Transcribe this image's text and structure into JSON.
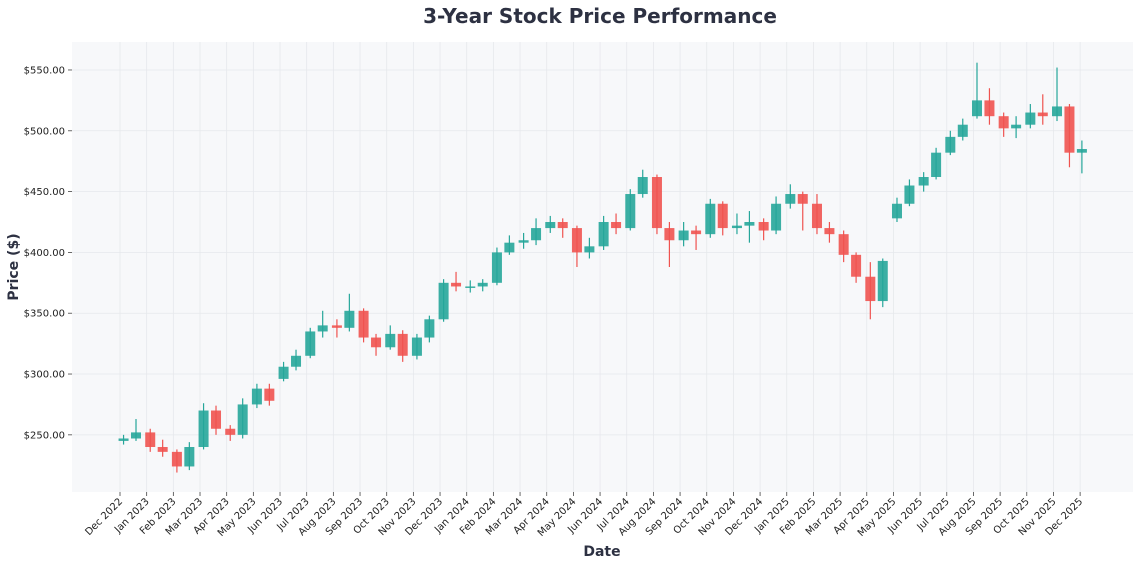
{
  "chart_data": {
    "type": "candlestick",
    "title": "3-Year Stock Price Performance",
    "xlabel": "Date",
    "ylabel": "Price ($)",
    "ylim": [
      203,
      573
    ],
    "y_ticks": [
      "$250.00",
      "$300.00",
      "$350.00",
      "$400.00",
      "$450.00",
      "$500.00",
      "$550.00"
    ],
    "y_tick_values": [
      250,
      300,
      350,
      400,
      450,
      500,
      550
    ],
    "x_ticks": [
      "Dec 2022",
      "Jan 2023",
      "Feb 2023",
      "Mar 2023",
      "Apr 2023",
      "May 2023",
      "Jun 2023",
      "Jul 2023",
      "Aug 2023",
      "Sep 2023",
      "Oct 2023",
      "Nov 2023",
      "Dec 2023",
      "Jan 2024",
      "Feb 2024",
      "Mar 2024",
      "Apr 2024",
      "May 2024",
      "Jun 2024",
      "Jul 2024",
      "Aug 2024",
      "Sep 2024",
      "Oct 2024",
      "Nov 2024",
      "Dec 2024",
      "Jan 2025",
      "Feb 2025",
      "Mar 2025",
      "Apr 2025",
      "May 2025",
      "Jun 2025",
      "Jul 2025",
      "Aug 2025",
      "Sep 2025",
      "Oct 2025",
      "Nov 2025",
      "Dec 2025"
    ],
    "grid": true,
    "colors": {
      "up": "#26a69a",
      "down": "#ef5350",
      "plot_bg": "#f7f8fa",
      "grid": "#e6e8ec"
    },
    "candles": [
      {
        "date": "2022-12-05",
        "open": 245,
        "high": 250,
        "low": 242,
        "close": 247
      },
      {
        "date": "2022-12-19",
        "open": 247,
        "high": 263,
        "low": 245,
        "close": 252
      },
      {
        "date": "2023-01-05",
        "open": 252,
        "high": 255,
        "low": 236,
        "close": 240
      },
      {
        "date": "2023-01-19",
        "open": 240,
        "high": 246,
        "low": 232,
        "close": 236
      },
      {
        "date": "2023-02-05",
        "open": 236,
        "high": 238,
        "low": 219,
        "close": 224
      },
      {
        "date": "2023-02-19",
        "open": 224,
        "high": 244,
        "low": 221,
        "close": 240
      },
      {
        "date": "2023-03-05",
        "open": 240,
        "high": 276,
        "low": 238,
        "close": 270
      },
      {
        "date": "2023-03-19",
        "open": 270,
        "high": 274,
        "low": 250,
        "close": 255
      },
      {
        "date": "2023-04-05",
        "open": 255,
        "high": 258,
        "low": 245,
        "close": 250
      },
      {
        "date": "2023-04-19",
        "open": 250,
        "high": 280,
        "low": 247,
        "close": 275
      },
      {
        "date": "2023-05-05",
        "open": 275,
        "high": 292,
        "low": 272,
        "close": 288
      },
      {
        "date": "2023-05-19",
        "open": 288,
        "high": 292,
        "low": 274,
        "close": 278
      },
      {
        "date": "2023-06-05",
        "open": 296,
        "high": 310,
        "low": 294,
        "close": 306
      },
      {
        "date": "2023-06-19",
        "open": 306,
        "high": 320,
        "low": 303,
        "close": 315
      },
      {
        "date": "2023-07-05",
        "open": 315,
        "high": 338,
        "low": 313,
        "close": 335
      },
      {
        "date": "2023-07-19",
        "open": 335,
        "high": 352,
        "low": 330,
        "close": 340
      },
      {
        "date": "2023-08-05",
        "open": 340,
        "high": 345,
        "low": 330,
        "close": 338
      },
      {
        "date": "2023-08-19",
        "open": 338,
        "high": 366,
        "low": 335,
        "close": 352
      },
      {
        "date": "2023-09-05",
        "open": 352,
        "high": 354,
        "low": 326,
        "close": 330
      },
      {
        "date": "2023-09-19",
        "open": 330,
        "high": 333,
        "low": 315,
        "close": 322
      },
      {
        "date": "2023-10-05",
        "open": 322,
        "high": 340,
        "low": 320,
        "close": 333
      },
      {
        "date": "2023-10-19",
        "open": 333,
        "high": 336,
        "low": 310,
        "close": 315
      },
      {
        "date": "2023-11-05",
        "open": 315,
        "high": 333,
        "low": 312,
        "close": 330
      },
      {
        "date": "2023-11-19",
        "open": 330,
        "high": 348,
        "low": 326,
        "close": 345
      },
      {
        "date": "2023-12-05",
        "open": 345,
        "high": 378,
        "low": 343,
        "close": 375
      },
      {
        "date": "2023-12-19",
        "open": 375,
        "high": 384,
        "low": 368,
        "close": 372
      },
      {
        "date": "2024-01-05",
        "open": 372,
        "high": 377,
        "low": 367,
        "close": 372
      },
      {
        "date": "2024-01-19",
        "open": 372,
        "high": 378,
        "low": 368,
        "close": 375
      },
      {
        "date": "2024-02-05",
        "open": 375,
        "high": 404,
        "low": 373,
        "close": 400
      },
      {
        "date": "2024-02-19",
        "open": 400,
        "high": 414,
        "low": 398,
        "close": 408
      },
      {
        "date": "2024-03-05",
        "open": 408,
        "high": 416,
        "low": 403,
        "close": 410
      },
      {
        "date": "2024-03-19",
        "open": 410,
        "high": 428,
        "low": 406,
        "close": 420
      },
      {
        "date": "2024-04-05",
        "open": 420,
        "high": 430,
        "low": 416,
        "close": 425
      },
      {
        "date": "2024-04-19",
        "open": 425,
        "high": 428,
        "low": 412,
        "close": 420
      },
      {
        "date": "2024-05-05",
        "open": 420,
        "high": 422,
        "low": 388,
        "close": 400
      },
      {
        "date": "2024-05-19",
        "open": 400,
        "high": 412,
        "low": 395,
        "close": 405
      },
      {
        "date": "2024-06-05",
        "open": 405,
        "high": 430,
        "low": 402,
        "close": 425
      },
      {
        "date": "2024-06-19",
        "open": 425,
        "high": 432,
        "low": 415,
        "close": 420
      },
      {
        "date": "2024-07-05",
        "open": 420,
        "high": 452,
        "low": 418,
        "close": 448
      },
      {
        "date": "2024-07-19",
        "open": 448,
        "high": 468,
        "low": 445,
        "close": 462
      },
      {
        "date": "2024-08-05",
        "open": 462,
        "high": 464,
        "low": 415,
        "close": 420
      },
      {
        "date": "2024-08-19",
        "open": 420,
        "high": 425,
        "low": 388,
        "close": 410
      },
      {
        "date": "2024-09-05",
        "open": 410,
        "high": 425,
        "low": 405,
        "close": 418
      },
      {
        "date": "2024-09-19",
        "open": 418,
        "high": 422,
        "low": 402,
        "close": 415
      },
      {
        "date": "2024-10-05",
        "open": 415,
        "high": 444,
        "low": 412,
        "close": 440
      },
      {
        "date": "2024-10-19",
        "open": 440,
        "high": 442,
        "low": 414,
        "close": 420
      },
      {
        "date": "2024-11-05",
        "open": 420,
        "high": 432,
        "low": 415,
        "close": 422
      },
      {
        "date": "2024-11-19",
        "open": 422,
        "high": 434,
        "low": 408,
        "close": 425
      },
      {
        "date": "2024-12-05",
        "open": 425,
        "high": 428,
        "low": 410,
        "close": 418
      },
      {
        "date": "2024-12-19",
        "open": 418,
        "high": 446,
        "low": 415,
        "close": 440
      },
      {
        "date": "2025-01-05",
        "open": 440,
        "high": 456,
        "low": 436,
        "close": 448
      },
      {
        "date": "2025-01-19",
        "open": 448,
        "high": 450,
        "low": 418,
        "close": 440
      },
      {
        "date": "2025-02-05",
        "open": 440,
        "high": 448,
        "low": 415,
        "close": 420
      },
      {
        "date": "2025-02-19",
        "open": 420,
        "high": 425,
        "low": 408,
        "close": 415
      },
      {
        "date": "2025-03-05",
        "open": 415,
        "high": 418,
        "low": 392,
        "close": 398
      },
      {
        "date": "2025-03-19",
        "open": 398,
        "high": 400,
        "low": 375,
        "close": 380
      },
      {
        "date": "2025-04-05",
        "open": 380,
        "high": 392,
        "low": 345,
        "close": 360
      },
      {
        "date": "2025-04-19",
        "open": 360,
        "high": 395,
        "low": 355,
        "close": 393
      },
      {
        "date": "2025-05-05",
        "open": 428,
        "high": 445,
        "low": 425,
        "close": 440
      },
      {
        "date": "2025-05-19",
        "open": 440,
        "high": 460,
        "low": 438,
        "close": 455
      },
      {
        "date": "2025-06-05",
        "open": 455,
        "high": 466,
        "low": 450,
        "close": 462
      },
      {
        "date": "2025-06-19",
        "open": 462,
        "high": 486,
        "low": 460,
        "close": 482
      },
      {
        "date": "2025-07-05",
        "open": 482,
        "high": 500,
        "low": 480,
        "close": 495
      },
      {
        "date": "2025-07-19",
        "open": 495,
        "high": 510,
        "low": 492,
        "close": 505
      },
      {
        "date": "2025-08-05",
        "open": 512,
        "high": 556,
        "low": 510,
        "close": 525
      },
      {
        "date": "2025-08-19",
        "open": 525,
        "high": 535,
        "low": 505,
        "close": 512
      },
      {
        "date": "2025-09-05",
        "open": 512,
        "high": 515,
        "low": 495,
        "close": 502
      },
      {
        "date": "2025-09-19",
        "open": 502,
        "high": 512,
        "low": 494,
        "close": 505
      },
      {
        "date": "2025-10-05",
        "open": 505,
        "high": 522,
        "low": 502,
        "close": 515
      },
      {
        "date": "2025-10-19",
        "open": 515,
        "high": 530,
        "low": 505,
        "close": 512
      },
      {
        "date": "2025-11-05",
        "open": 512,
        "high": 552,
        "low": 508,
        "close": 520
      },
      {
        "date": "2025-11-19",
        "open": 520,
        "high": 522,
        "low": 470,
        "close": 482
      },
      {
        "date": "2025-12-03",
        "open": 482,
        "high": 492,
        "low": 465,
        "close": 485
      }
    ]
  }
}
